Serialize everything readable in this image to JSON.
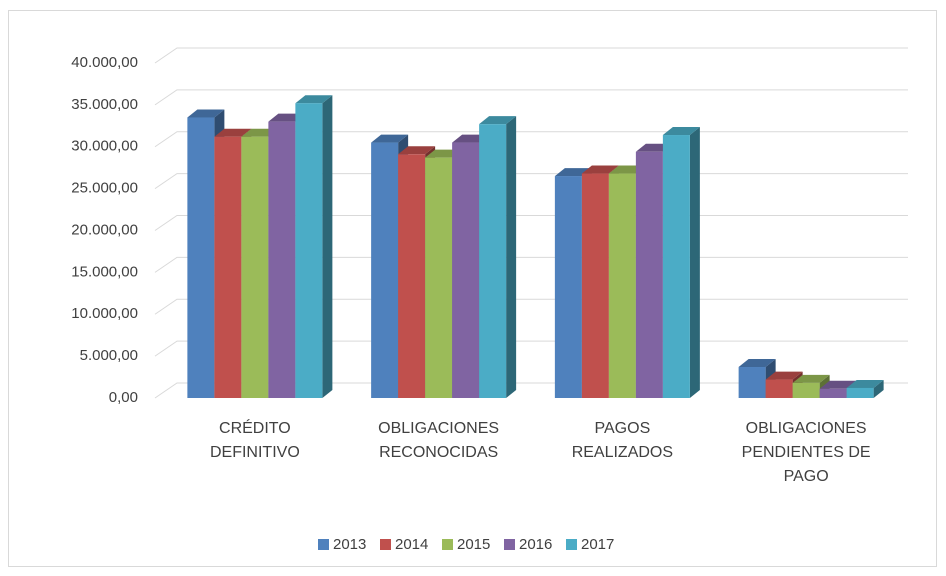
{
  "chart_data": {
    "type": "bar3d",
    "categories": [
      "CRÉDITO DEFINITIVO",
      "OBLIGACIONES RECONOCIDAS",
      "PAGOS REALIZADOS",
      "OBLIGACIONES PENDIENTES DE PAGO"
    ],
    "series": [
      {
        "name": "2013",
        "color": "#4f81bd",
        "values": [
          33500,
          30500,
          26500,
          3700
        ]
      },
      {
        "name": "2014",
        "color": "#c0504d",
        "values": [
          31200,
          29100,
          26800,
          2200
        ]
      },
      {
        "name": "2015",
        "color": "#9bbb59",
        "values": [
          31200,
          28700,
          26800,
          1800
        ]
      },
      {
        "name": "2016",
        "color": "#8064a2",
        "values": [
          33000,
          30500,
          29400,
          1100
        ]
      },
      {
        "name": "2017",
        "color": "#4bacc6",
        "values": [
          35200,
          32700,
          31400,
          1200
        ]
      }
    ],
    "ylim": [
      0,
      40000
    ],
    "yticks": [
      {
        "value": 0,
        "label": "0,00"
      },
      {
        "value": 5000,
        "label": "5.000,00"
      },
      {
        "value": 10000,
        "label": "10.000,00"
      },
      {
        "value": 15000,
        "label": "15.000,00"
      },
      {
        "value": 20000,
        "label": "20.000,00"
      },
      {
        "value": 25000,
        "label": "25.000,00"
      },
      {
        "value": 30000,
        "label": "30.000,00"
      },
      {
        "value": 35000,
        "label": "35.000,00"
      },
      {
        "value": 40000,
        "label": "40.000,00"
      }
    ],
    "grid": true,
    "legend": "bottom"
  }
}
